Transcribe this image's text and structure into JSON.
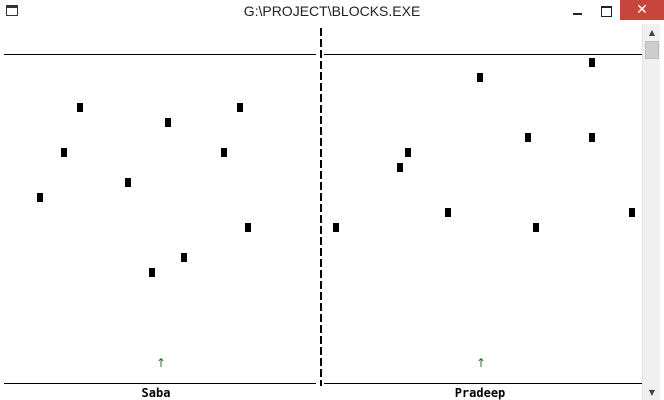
{
  "window": {
    "title": "G:\\PROJECT\\BLOCKS.EXE",
    "app_icon": "console-window-icon",
    "controls": {
      "minimize_icon": "minimize-icon",
      "maximize_icon": "maximize-icon",
      "close_glyph": "✕",
      "close_color": "#c7463b"
    }
  },
  "game": {
    "players": [
      {
        "name": "Saba",
        "shooter_glyph": "↑"
      },
      {
        "name": "Pradeep",
        "shooter_glyph": "↑"
      }
    ],
    "colors": {
      "block": "#000000",
      "shooter": "#2a6b2a",
      "background": "#ffffff"
    }
  },
  "scrollbar": {
    "up_glyph": "▲",
    "down_glyph": "▼"
  }
}
